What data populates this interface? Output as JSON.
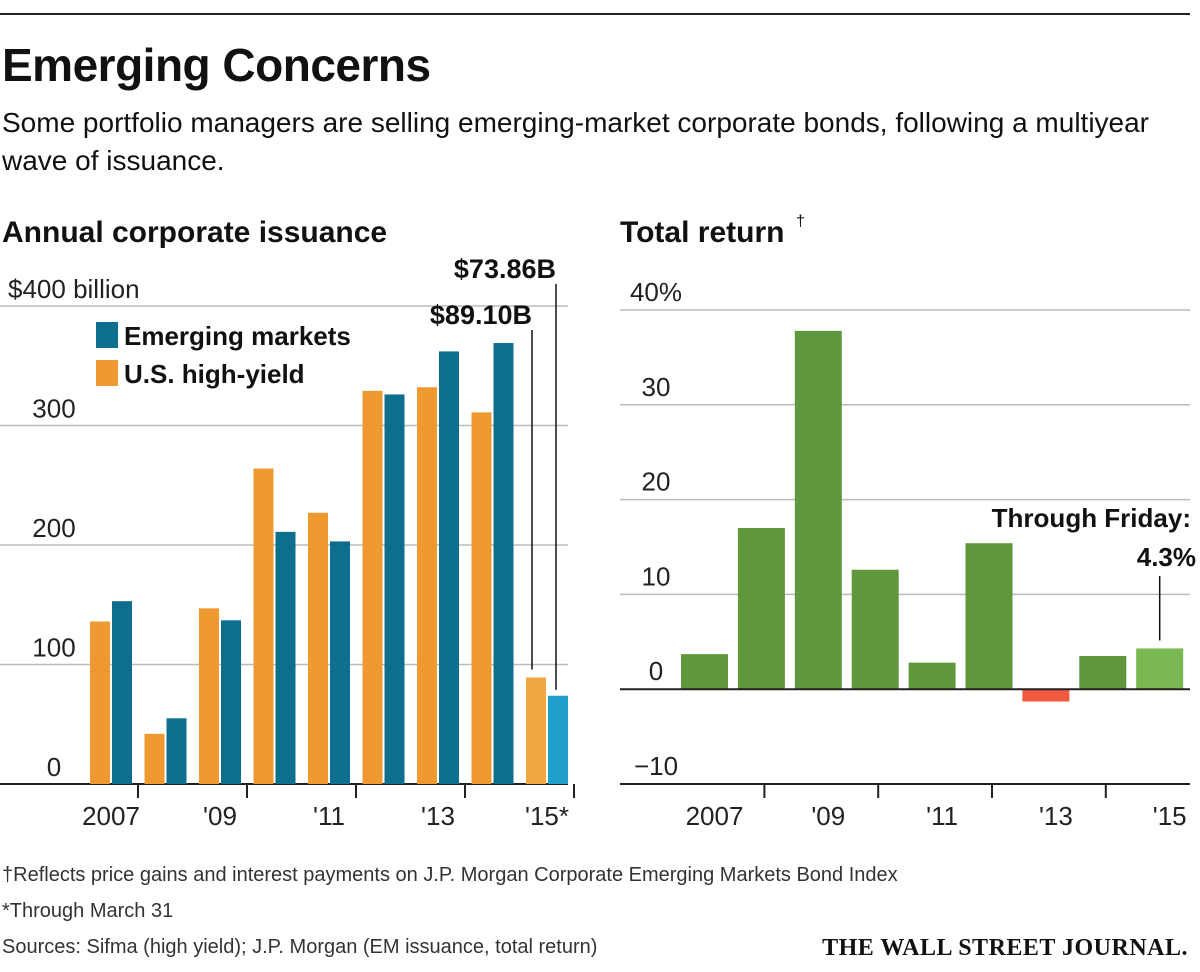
{
  "header": {
    "title": "Emerging Concerns",
    "subtitle": "Some portfolio managers are selling emerging-market corporate bonds, following a multiyear wave of issuance."
  },
  "chart_data": [
    {
      "type": "bar",
      "title": "Annual corporate issuance",
      "unit_label": "$400 billion",
      "categories": [
        "2007",
        "2008",
        "2009",
        "2010",
        "2011",
        "2012",
        "2013",
        "2014",
        "2015"
      ],
      "x_tick_labels": [
        "2007",
        "'09",
        "'11",
        "'13",
        "'15*"
      ],
      "y_ticks": [
        "0",
        "100",
        "200",
        "300"
      ],
      "ylim": [
        0,
        400
      ],
      "legend": [
        {
          "name": "Emerging markets",
          "color": "#0e6e8e"
        },
        {
          "name": "U.S. high-yield",
          "color": "#ee9a30"
        }
      ],
      "series": [
        {
          "name": "U.S. high-yield",
          "color": "#ee9a30",
          "values": [
            136,
            42,
            147,
            264,
            227,
            329,
            332,
            311,
            89.1
          ]
        },
        {
          "name": "Emerging markets",
          "color": "#0e6e8e",
          "values": [
            153,
            55,
            137,
            211,
            203,
            326,
            362,
            369,
            73.86
          ]
        }
      ],
      "highlight_colors": {
        "U.S. high-yield": "#f1a641",
        "Emerging markets": "#1fa0c8"
      },
      "annotations": [
        {
          "text": "$89.10B",
          "category": "2015",
          "series": "U.S. high-yield"
        },
        {
          "text": "$73.86B",
          "category": "2015",
          "series": "Emerging markets"
        }
      ]
    },
    {
      "type": "bar",
      "title": "Total return",
      "title_marker": "†",
      "categories": [
        "2007",
        "2008",
        "2009",
        "2010",
        "2011",
        "2012",
        "2013",
        "2014",
        "2015"
      ],
      "x_tick_labels": [
        "2007",
        "'09",
        "'11",
        "'13",
        "'15"
      ],
      "y_ticks": [
        "40%",
        "30",
        "20",
        "10",
        "0",
        "−10"
      ],
      "ylim": [
        -10,
        40
      ],
      "values": [
        3.7,
        17.0,
        37.8,
        12.6,
        2.8,
        15.4,
        -1.3,
        3.5,
        4.3
      ],
      "colors": {
        "positive": "#5f973c",
        "negative": "#f05a3e",
        "highlight": "#7ab852"
      },
      "annotations": [
        {
          "text": "Through Friday:",
          "category": "2015"
        },
        {
          "text": "4.3%",
          "category": "2015"
        }
      ]
    }
  ],
  "footnotes": [
    "†Reflects price gains and interest payments on J.P. Morgan Corporate Emerging Markets Bond Index",
    "*Through March 31",
    "Sources: Sifma (high yield); J.P. Morgan (EM issuance, total return)"
  ],
  "brand": "THE WALL STREET JOURNAL."
}
